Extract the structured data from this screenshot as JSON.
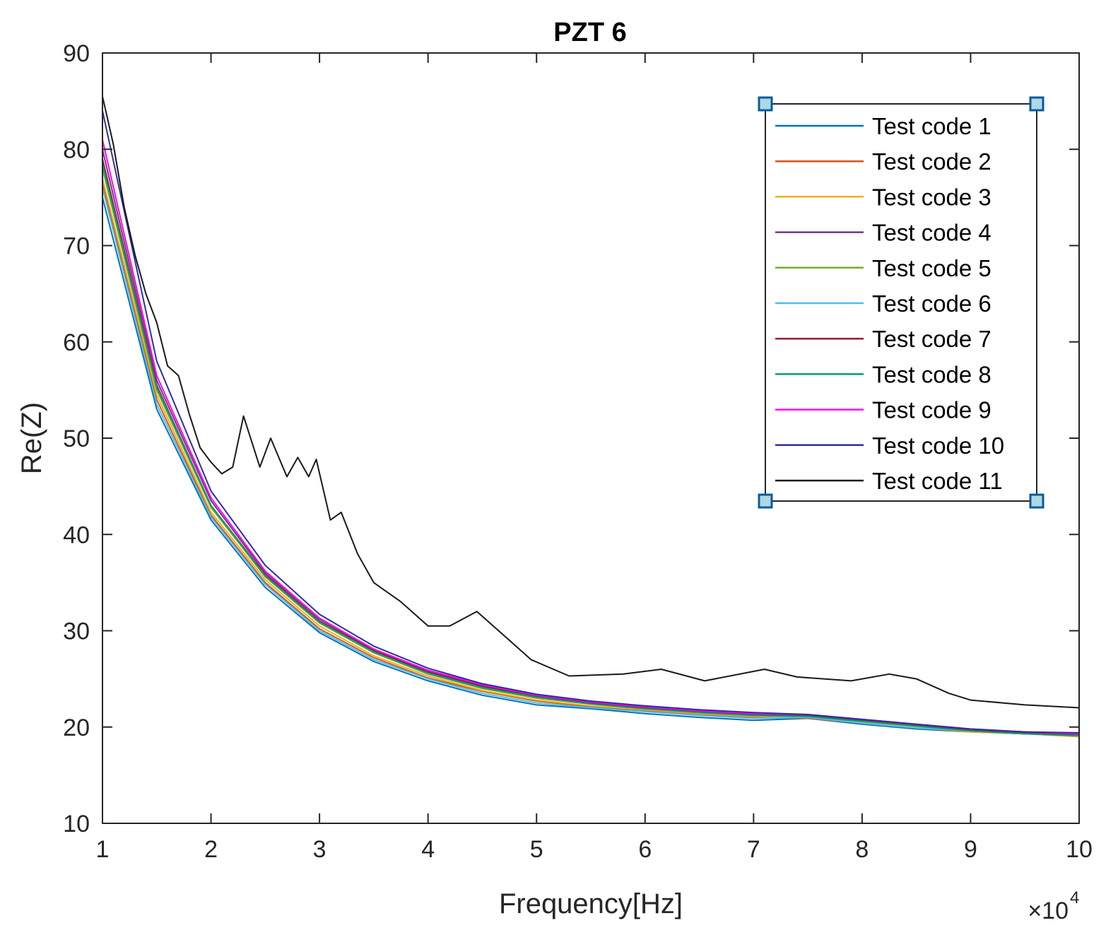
{
  "chart_data": {
    "type": "line",
    "title": "PZT 6",
    "xlabel": "Frequency[Hz]",
    "ylabel": "Re(Z)",
    "x_multiplier_label": "×10",
    "x_multiplier_exponent": "4",
    "xlim": [
      1,
      10
    ],
    "ylim": [
      10,
      90
    ],
    "xticks": [
      1,
      2,
      3,
      4,
      5,
      6,
      7,
      8,
      9,
      10
    ],
    "yticks": [
      10,
      20,
      30,
      40,
      50,
      60,
      70,
      80,
      90
    ],
    "legend_position": "top-right",
    "series": [
      {
        "name": "Test code 1",
        "color": "#0072BD",
        "x": [
          1,
          1.5,
          2,
          2.5,
          3,
          3.5,
          4,
          4.5,
          5,
          5.5,
          6,
          6.5,
          7,
          7.5,
          8,
          8.5,
          9,
          9.5,
          10
        ],
        "y": [
          75,
          53,
          41.5,
          34.5,
          29.8,
          26.8,
          24.8,
          23.3,
          22.3,
          21.9,
          21.4,
          21,
          20.7,
          20.9,
          20.3,
          19.8,
          19.5,
          19.3,
          19.1
        ]
      },
      {
        "name": "Test code 2",
        "color": "#D95319",
        "x": [
          1,
          1.5,
          2,
          2.5,
          3,
          3.5,
          4,
          4.5,
          5,
          5.5,
          6,
          6.5,
          7,
          7.5,
          8,
          8.5,
          9,
          9.5,
          10
        ],
        "y": [
          76.5,
          54,
          42,
          35,
          30.2,
          27.2,
          25.1,
          23.7,
          22.7,
          22.1,
          21.7,
          21.3,
          21,
          20.9,
          20.4,
          19.9,
          19.5,
          19.3,
          19
        ]
      },
      {
        "name": "Test code 3",
        "color": "#EDB120",
        "x": [
          1,
          1.5,
          2,
          2.5,
          3,
          3.5,
          4,
          4.5,
          5,
          5.5,
          6,
          6.5,
          7,
          7.5,
          8,
          8.5,
          9,
          9.5,
          10
        ],
        "y": [
          77,
          54.5,
          42.3,
          35.3,
          30.5,
          27.4,
          25.3,
          23.8,
          22.8,
          22.2,
          21.8,
          21.4,
          21.1,
          21,
          20.5,
          20,
          19.5,
          19.3,
          19
        ]
      },
      {
        "name": "Test code 4",
        "color": "#7E2F8E",
        "x": [
          1,
          1.5,
          2,
          2.5,
          3,
          3.5,
          4,
          4.5,
          5,
          5.5,
          6,
          6.5,
          7,
          7.5,
          8,
          8.5,
          9,
          9.5,
          10
        ],
        "y": [
          80,
          56,
          43.5,
          36,
          31.2,
          28,
          25.8,
          24.3,
          23.3,
          22.6,
          22.1,
          21.7,
          21.4,
          21.2,
          20.7,
          20.2,
          19.7,
          19.4,
          19.2
        ]
      },
      {
        "name": "Test code 5",
        "color": "#77AC30",
        "x": [
          1,
          1.5,
          2,
          2.5,
          3,
          3.5,
          4,
          4.5,
          5,
          5.5,
          6,
          6.5,
          7,
          7.5,
          8,
          8.5,
          9,
          9.5,
          10
        ],
        "y": [
          78,
          55,
          42.8,
          35.6,
          30.8,
          27.7,
          25.5,
          24,
          23,
          22.4,
          21.9,
          21.5,
          21.2,
          21.1,
          20.6,
          20.1,
          19.6,
          19.3,
          19.1
        ]
      },
      {
        "name": "Test code 6",
        "color": "#4DBEEE",
        "x": [
          1,
          1.5,
          2,
          2.5,
          3,
          3.5,
          4,
          4.5,
          5,
          5.5,
          6,
          6.5,
          7,
          7.5,
          8,
          8.5,
          9,
          9.5,
          10
        ],
        "y": [
          76,
          53.5,
          41.8,
          34.8,
          30,
          27,
          25,
          23.5,
          22.5,
          22,
          21.6,
          21.2,
          20.9,
          21,
          20.4,
          19.9,
          19.6,
          19.5,
          19.3
        ]
      },
      {
        "name": "Test code 7",
        "color": "#A2142F",
        "x": [
          1,
          1.5,
          2,
          2.5,
          3,
          3.5,
          4,
          4.5,
          5,
          5.5,
          6,
          6.5,
          7,
          7.5,
          8,
          8.5,
          9,
          9.5,
          10
        ],
        "y": [
          79,
          55.5,
          43,
          35.8,
          31,
          27.9,
          25.7,
          24.2,
          23.2,
          22.5,
          22,
          21.6,
          21.3,
          21.2,
          20.7,
          20.2,
          19.7,
          19.4,
          19.2
        ]
      },
      {
        "name": "Test code 8",
        "color": "#009E73",
        "x": [
          1,
          1.5,
          2,
          2.5,
          3,
          3.5,
          4,
          4.5,
          5,
          5.5,
          6,
          6.5,
          7,
          7.5,
          8,
          8.5,
          9,
          9.5,
          10
        ],
        "y": [
          78.5,
          55.3,
          43,
          35.7,
          30.9,
          27.8,
          25.6,
          24.1,
          23.1,
          22.4,
          21.9,
          21.5,
          21.2,
          21.1,
          20.6,
          20.1,
          19.6,
          19.3,
          19.1
        ]
      },
      {
        "name": "Test code 9",
        "color": "#FF00FF",
        "x": [
          1,
          1.5,
          2,
          2.5,
          3,
          3.5,
          4,
          4.5,
          5,
          5.5,
          6,
          6.5,
          7,
          7.5,
          8,
          8.5,
          9,
          9.5,
          10
        ],
        "y": [
          81,
          56.5,
          43.8,
          36.2,
          31.3,
          28.1,
          25.9,
          24.4,
          23.3,
          22.6,
          22.1,
          21.7,
          21.4,
          21.3,
          20.8,
          20.3,
          19.8,
          19.5,
          19.3
        ]
      },
      {
        "name": "Test code 10",
        "color": "#2E2EA5",
        "x": [
          1,
          1.5,
          2,
          2.5,
          3,
          3.5,
          4,
          4.5,
          5,
          5.5,
          6,
          6.5,
          7,
          7.5,
          8,
          8.5,
          9,
          9.5,
          10
        ],
        "y": [
          84,
          58,
          44.5,
          36.8,
          31.7,
          28.4,
          26.1,
          24.5,
          23.4,
          22.7,
          22.2,
          21.8,
          21.5,
          21.3,
          20.8,
          20.3,
          19.8,
          19.5,
          19.4
        ]
      },
      {
        "name": "Test code 11",
        "color": "#1A1A1A",
        "x": [
          1,
          1.1,
          1.2,
          1.3,
          1.4,
          1.5,
          1.6,
          1.7,
          1.8,
          1.9,
          2,
          2.1,
          2.2,
          2.3,
          2.45,
          2.55,
          2.7,
          2.8,
          2.9,
          2.97,
          3.1,
          3.2,
          3.35,
          3.5,
          3.75,
          4,
          4.2,
          4.45,
          4.7,
          4.95,
          5.3,
          5.8,
          6.15,
          6.55,
          7.1,
          7.4,
          7.9,
          8.25,
          8.5,
          8.8,
          9,
          9.5,
          10
        ],
        "y": [
          85.5,
          80.5,
          74,
          69,
          65,
          62,
          57.5,
          56.5,
          52.5,
          49,
          47.5,
          46.3,
          47,
          52.3,
          47,
          50,
          46,
          48,
          46,
          47.8,
          41.5,
          42.3,
          38,
          35,
          33,
          30.5,
          30.5,
          32,
          29.5,
          27,
          25.3,
          25.5,
          26,
          24.8,
          26,
          25.2,
          24.8,
          25.5,
          25,
          23.5,
          22.8,
          22.3,
          22
        ]
      }
    ]
  }
}
